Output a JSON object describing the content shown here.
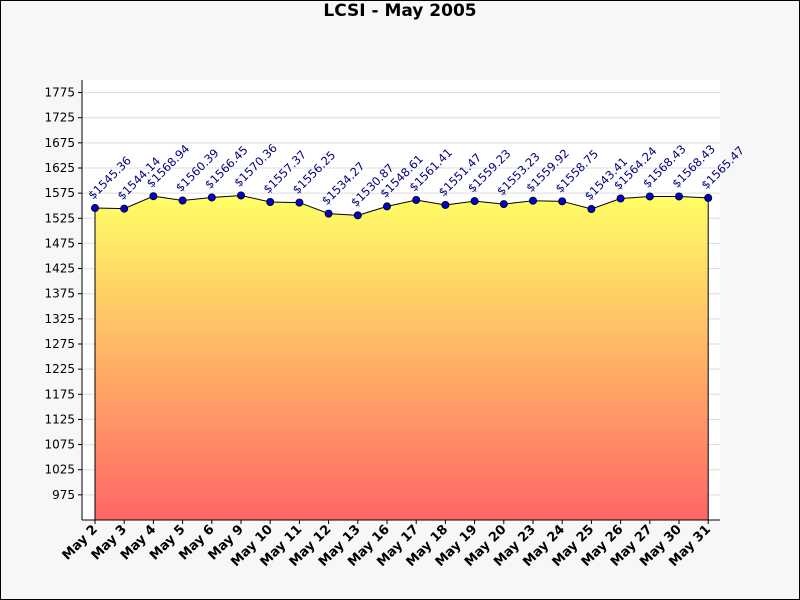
{
  "chart_data": {
    "type": "area",
    "title": "LCSI - May 2005",
    "xlabel": "",
    "ylabel": "",
    "ylim": [
      925,
      1800
    ],
    "yticks": [
      975,
      1025,
      1075,
      1125,
      1175,
      1225,
      1275,
      1325,
      1375,
      1425,
      1475,
      1525,
      1575,
      1625,
      1675,
      1725,
      1775
    ],
    "grid": true,
    "legend": "none",
    "categories": [
      "May 2",
      "May 3",
      "May 4",
      "May 5",
      "May 6",
      "May 9",
      "May 10",
      "May 11",
      "May 12",
      "May 13",
      "May 16",
      "May 17",
      "May 18",
      "May 19",
      "May 20",
      "May 23",
      "May 24",
      "May 25",
      "May 26",
      "May 27",
      "May 30",
      "May 31"
    ],
    "values": [
      1545.36,
      1544.14,
      1568.94,
      1560.39,
      1566.45,
      1570.36,
      1557.37,
      1556.25,
      1534.27,
      1530.87,
      1548.61,
      1561.41,
      1551.47,
      1559.23,
      1553.23,
      1559.92,
      1558.75,
      1543.41,
      1564.24,
      1568.43,
      1568.43,
      1565.47
    ],
    "data_labels": [
      "$1545.36",
      "$1544.14",
      "$1568.94",
      "$1560.39",
      "$1566.45",
      "$1570.36",
      "$1557.37",
      "$1556.25",
      "$1534.27",
      "$1530.87",
      "$1548.61",
      "$1561.41",
      "$1551.47",
      "$1559.23",
      "$1553.23",
      "$1559.92",
      "$1558.75",
      "$1543.41",
      "$1564.24",
      "$1568.43",
      "$1568.43",
      "$1565.47"
    ],
    "colors": {
      "fill_top": "#ffff66",
      "fill_bottom": "#ff6666",
      "line": "#000000",
      "marker": "#0000cc",
      "label": "#000080",
      "grid": "#dddddd",
      "plot_bg": "#ffffff"
    }
  }
}
